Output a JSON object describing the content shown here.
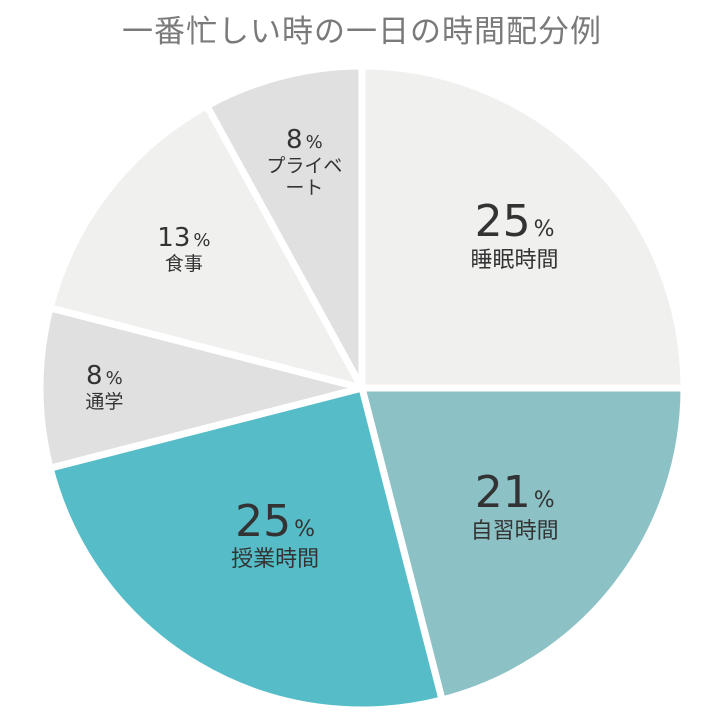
{
  "chart_data": {
    "type": "pie",
    "title": "一番忙しい時の一日の時間配分例",
    "unit": "%",
    "slices": [
      {
        "label": "睡眠時間",
        "value": 25,
        "color": "#f0f0ef"
      },
      {
        "label": "自習時間",
        "value": 21,
        "color": "#8cc2c6"
      },
      {
        "label": "授業時間",
        "value": 25,
        "color": "#56bdc8"
      },
      {
        "label": "通学",
        "value": 8,
        "color": "#e0e0e0"
      },
      {
        "label": "食事",
        "value": 13,
        "color": "#f0f0ef"
      },
      {
        "label": "プライベート",
        "value": 8,
        "color": "#e0e0e0"
      }
    ],
    "start": "top",
    "direction": "clockwise"
  }
}
